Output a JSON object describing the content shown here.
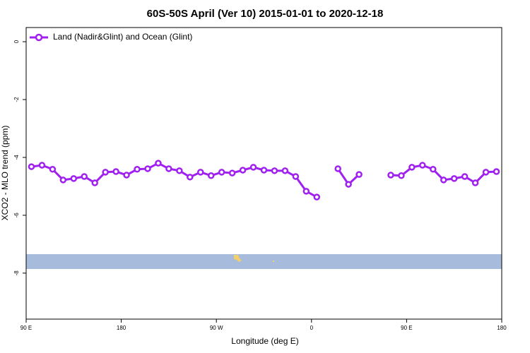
{
  "chart_data": {
    "type": "line",
    "title": "60S-50S April (Ver 10)   2015-01-01 to 2020-12-18",
    "x_label": "Longitude (deg E)",
    "y_label": "XCO2 - MLO trend (ppm)",
    "x": [
      95,
      105,
      115,
      125,
      135,
      145,
      155,
      165,
      175,
      185,
      195,
      205,
      215,
      225,
      235,
      245,
      255,
      265,
      275,
      285,
      295,
      305,
      315,
      325,
      335,
      345,
      355,
      365,
      375,
      385,
      395,
      405,
      415,
      425,
      435,
      445,
      455,
      465,
      475,
      485,
      495,
      505,
      515,
      525,
      535
    ],
    "series": [
      {
        "name": "Land (Nadir&Glint) and Ocean (Glint)",
        "color": "#a020f0",
        "values": [
          -4.32,
          -4.27,
          -4.41,
          -4.78,
          -4.73,
          -4.66,
          -4.88,
          -4.51,
          -4.49,
          -4.61,
          -4.41,
          -4.39,
          -4.2,
          -4.39,
          -4.46,
          -4.68,
          -4.51,
          -4.63,
          -4.51,
          -4.54,
          -4.44,
          -4.34,
          -4.44,
          -4.46,
          -4.46,
          -4.66,
          -5.17,
          -5.37,
          null,
          -4.39,
          -4.93,
          -4.59,
          null,
          null,
          -4.61,
          -4.63,
          -4.34,
          -4.27,
          -4.41,
          -4.78,
          -4.73,
          -4.66,
          -4.88,
          -4.51,
          -4.49
        ]
      }
    ],
    "xlim": [
      90,
      540
    ],
    "xticks": [
      {
        "value": 90,
        "label": "90 E"
      },
      180,
      {
        "value": 270,
        "label": "90 W"
      },
      {
        "value": 360,
        "label": "0"
      },
      {
        "value": 450,
        "label": "90 E"
      },
      {
        "value": 540,
        "label": "180"
      }
    ],
    "ylim": [
      -9.59,
      0.49
    ],
    "yticks": [
      0,
      -2,
      -4,
      -6,
      -8
    ],
    "legend": "top-left"
  }
}
